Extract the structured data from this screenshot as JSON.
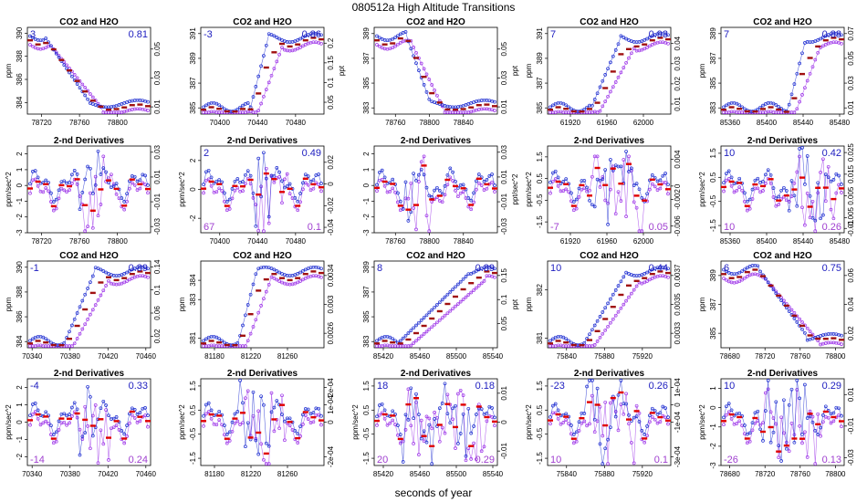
{
  "figure": {
    "title": "080512a   High Altitude Transitions",
    "xlabel": "seconds of year"
  },
  "colors": {
    "co2": "#1a2ad0",
    "h2o": "#9b30e8",
    "ref": "#a01010",
    "ref_deriv": "#e00000",
    "blue_label": "#2020c0",
    "purple_label": "#a040d0",
    "dark_navy": "#101060"
  },
  "chart_data": [
    {
      "type": "scatter",
      "title": "CO2 and H2O",
      "row": 0,
      "col": 0,
      "x_ticks": [
        78720,
        78760,
        78800
      ],
      "xlim": [
        78705,
        78835
      ],
      "y_ticks": [
        384,
        386,
        388,
        390
      ],
      "ylim": [
        383,
        390.5
      ],
      "y2_ticks": [
        0.01,
        0.03,
        0.05
      ],
      "y2lim": [
        0.005,
        0.065
      ],
      "ylabel": "ppm",
      "y2label": "",
      "left_label": "3",
      "right_label": "0.81",
      "shape": "drop",
      "step": [
        0.12,
        0.5
      ]
    },
    {
      "type": "scatter",
      "title": "CO2 and H2O",
      "row": 0,
      "col": 1,
      "x_ticks": [
        70400,
        70440,
        70480
      ],
      "xlim": [
        70380,
        70510
      ],
      "y_ticks": [
        385,
        387,
        389,
        391
      ],
      "ylim": [
        384.5,
        391.5
      ],
      "y2_ticks": [
        0.05,
        0.1,
        0.15,
        0.2
      ],
      "y2lim": [
        0.02,
        0.24
      ],
      "ylabel": "",
      "y2label": "ppt",
      "left_label": "-3",
      "right_label": "0.86",
      "shape": "rise",
      "step": [
        0.4,
        0.55
      ]
    },
    {
      "type": "scatter",
      "title": "CO2 and H2O",
      "row": 0,
      "col": 2,
      "x_ticks": [
        78760,
        78800,
        78840
      ],
      "xlim": [
        78735,
        78880
      ],
      "y_ticks": [
        383,
        385,
        387,
        389
      ],
      "ylim": [
        382.5,
        389.5
      ],
      "y2_ticks": [
        0.01,
        0.03,
        0.05
      ],
      "y2lim": [
        0.005,
        0.065
      ],
      "ylabel": "",
      "y2label": "ppt",
      "left_label": "",
      "right_label": "",
      "shape": "drop",
      "step": [
        0.25,
        0.45
      ]
    },
    {
      "type": "scatter",
      "title": "CO2 and H2O",
      "row": 0,
      "col": 3,
      "x_ticks": [
        61920,
        61960,
        62000
      ],
      "xlim": [
        61895,
        62030
      ],
      "y_ticks": [
        385,
        387,
        389,
        391
      ],
      "ylim": [
        384.5,
        391.5
      ],
      "y2_ticks": [
        0.01,
        0.02,
        0.03,
        0.04
      ],
      "y2lim": [
        0.005,
        0.048
      ],
      "ylabel": "ppm",
      "y2label": "",
      "left_label": "7",
      "right_label": "0.93",
      "shape": "rise",
      "step": [
        0.35,
        0.6
      ]
    },
    {
      "type": "scatter",
      "title": "CO2 and H2O",
      "row": 0,
      "col": 4,
      "x_ticks": [
        85360,
        85400,
        85440,
        85480
      ],
      "xlim": [
        85350,
        85485
      ],
      "y_ticks": [
        383,
        385,
        387,
        389
      ],
      "ylim": [
        382.5,
        389.5
      ],
      "y2_ticks": [
        0.01,
        0.03,
        0.05,
        0.07
      ],
      "y2lim": [
        0.005,
        0.075
      ],
      "ylabel": "ppm",
      "y2label": "",
      "left_label": "7",
      "right_label": "0.88",
      "shape": "rise",
      "step": [
        0.55,
        0.7
      ]
    },
    {
      "type": "scatter",
      "title": "2-nd Derivatives",
      "row": 1,
      "col": 0,
      "x_ticks": [
        78720,
        78760,
        78800
      ],
      "xlim": [
        78705,
        78835
      ],
      "y_ticks": [
        -3,
        -2,
        -1,
        0,
        1,
        2
      ],
      "ylim": [
        -3,
        2.5
      ],
      "y2_ticks": [
        -0.03,
        -0.01,
        0.01,
        0.03
      ],
      "y2lim": [
        -0.035,
        0.035
      ],
      "ylabel": "ppm/sec^2",
      "y2label": "",
      "left_label": "",
      "right_label": "",
      "bottom_left": "",
      "bottom_right": "",
      "shape": "wiggle",
      "step": [
        0.4,
        0.6
      ]
    },
    {
      "type": "scatter",
      "title": "2-nd Derivatives",
      "row": 1,
      "col": 1,
      "x_ticks": [
        70400,
        70440,
        70480
      ],
      "xlim": [
        70380,
        70510
      ],
      "y_ticks": [
        -2,
        0,
        2
      ],
      "ylim": [
        -3,
        3
      ],
      "y2_ticks": [
        -0.04,
        -0.02,
        0.0,
        0.02
      ],
      "y2lim": [
        -0.045,
        0.035
      ],
      "ylabel": "ppm/sec^2",
      "y2label": "",
      "left_label": "2",
      "right_label": "0.49",
      "bottom_left": "67",
      "bottom_right": "0.1",
      "shape": "wiggle",
      "step": [
        0.4,
        0.6
      ]
    },
    {
      "type": "scatter",
      "title": "2-nd Derivatives",
      "row": 1,
      "col": 2,
      "x_ticks": [
        78760,
        78800,
        78840
      ],
      "xlim": [
        78735,
        78880
      ],
      "y_ticks": [
        -3,
        -2,
        -1,
        0,
        1,
        2
      ],
      "ylim": [
        -3,
        2.5
      ],
      "y2_ticks": [
        -0.03,
        -0.01,
        0.01,
        0.03
      ],
      "y2lim": [
        -0.035,
        0.035
      ],
      "ylabel": "",
      "y2label": "ppt/sec^2",
      "left_label": "",
      "right_label": "",
      "bottom_left": "",
      "bottom_right": "",
      "shape": "wiggle",
      "step": [
        0.2,
        0.35
      ]
    },
    {
      "type": "scatter",
      "title": "2-nd Derivatives",
      "row": 1,
      "col": 3,
      "x_ticks": [
        61920,
        61960,
        62000
      ],
      "xlim": [
        61895,
        62030
      ],
      "y_ticks": [
        -1.5,
        -0.5,
        0.5,
        1.5
      ],
      "ylim": [
        -2,
        2
      ],
      "y2_ticks": [
        -0.006,
        -0.002,
        0.0,
        0.004
      ],
      "y2lim": [
        -0.007,
        0.006
      ],
      "ylabel": "ppm/sec^2",
      "y2label": "",
      "left_label": "",
      "right_label": "",
      "bottom_left": "-7",
      "bottom_right": "0.05",
      "shape": "wiggle",
      "step": [
        0.3,
        0.7
      ]
    },
    {
      "type": "scatter",
      "title": "2-nd Derivatives",
      "row": 1,
      "col": 4,
      "x_ticks": [
        85360,
        85400,
        85440,
        85480
      ],
      "xlim": [
        85350,
        85485
      ],
      "y_ticks": [
        -1.5,
        -0.5,
        0.5,
        1.5
      ],
      "ylim": [
        -1.8,
        1.8
      ],
      "y2_ticks": [
        -0.01,
        -0.005,
        0.005,
        0.015,
        0.025
      ],
      "y2lim": [
        -0.012,
        0.028
      ],
      "ylabel": "ppm/sec^2",
      "y2label": "",
      "left_label": "10",
      "right_label": "0.42",
      "bottom_left": "10",
      "bottom_right": "0.26",
      "shape": "wiggle",
      "step": [
        0.55,
        0.85
      ]
    },
    {
      "type": "scatter",
      "title": "CO2 and H2O",
      "row": 2,
      "col": 0,
      "x_ticks": [
        70340,
        70380,
        70420,
        70460
      ],
      "xlim": [
        70335,
        70465
      ],
      "y_ticks": [
        384,
        386,
        388,
        390
      ],
      "ylim": [
        383.5,
        390.5
      ],
      "y2_ticks": [
        0.02,
        0.06,
        0.1,
        0.14
      ],
      "y2lim": [
        0.0,
        0.15
      ],
      "ylabel": "ppm",
      "y2label": "",
      "left_label": "-1",
      "right_label": "0.89",
      "shape": "rise",
      "step": [
        0.3,
        0.55
      ]
    },
    {
      "type": "scatter",
      "title": "CO2 and H2O",
      "row": 2,
      "col": 1,
      "x_ticks": [
        81180,
        81220,
        81260
      ],
      "xlim": [
        81165,
        81300
      ],
      "y_ticks": [
        381,
        383,
        384
      ],
      "ylim": [
        380.5,
        385
      ],
      "y2_ticks": [
        0.0026,
        0.003,
        0.0034
      ],
      "y2lim": [
        0.0024,
        0.0036
      ],
      "ylabel": "ppm",
      "y2label": "",
      "left_label": "",
      "right_label": "",
      "shape": "rise",
      "step": [
        0.3,
        0.45
      ]
    },
    {
      "type": "scatter",
      "title": "CO2 and H2O",
      "row": 2,
      "col": 2,
      "x_ticks": [
        85420,
        85460,
        85500,
        85540
      ],
      "xlim": [
        85410,
        85545
      ],
      "y_ticks": [
        383,
        385,
        387,
        389
      ],
      "ylim": [
        382.5,
        389.5
      ],
      "y2_ticks": [
        0.05,
        0.1,
        0.15
      ],
      "y2lim": [
        0.0,
        0.18
      ],
      "ylabel": "",
      "y2label": "ppt",
      "left_label": "8",
      "right_label": "0.89",
      "shape": "rise",
      "step": [
        0.2,
        0.8
      ]
    },
    {
      "type": "scatter",
      "title": "CO2 and H2O",
      "row": 2,
      "col": 3,
      "x_ticks": [
        75840,
        75880,
        75920
      ],
      "xlim": [
        75820,
        75950
      ],
      "y_ticks": [
        381.0,
        382.0
      ],
      "ylim": [
        380.8,
        382.6
      ],
      "y2_ticks": [
        0.0033,
        0.0035,
        0.0037
      ],
      "y2lim": [
        0.0032,
        0.0038
      ],
      "ylabel": "ppm",
      "y2label": "",
      "left_label": "10",
      "right_label": "0.44",
      "shape": "rise",
      "step": [
        0.3,
        0.65
      ]
    },
    {
      "type": "scatter",
      "title": "CO2 and H2O",
      "row": 2,
      "col": 4,
      "x_ticks": [
        78680,
        78720,
        78760,
        78800
      ],
      "xlim": [
        78670,
        78810
      ],
      "y_ticks": [
        385,
        387,
        389
      ],
      "ylim": [
        384,
        390
      ],
      "y2_ticks": [
        0.02,
        0.04,
        0.06
      ],
      "y2lim": [
        0.01,
        0.07
      ],
      "ylabel": "ppm",
      "y2label": "",
      "left_label": "6",
      "right_label": "0.75",
      "shape": "drop",
      "step": [
        0.3,
        0.7
      ]
    },
    {
      "type": "scatter",
      "title": "2-nd Derivatives",
      "row": 3,
      "col": 0,
      "x_ticks": [
        70340,
        70380,
        70420,
        70460
      ],
      "xlim": [
        70335,
        70465
      ],
      "y_ticks": [
        -2,
        -1,
        0,
        1,
        2
      ],
      "ylim": [
        -2.5,
        2.5
      ],
      "y2_ticks": [],
      "y2lim": [
        -1,
        1
      ],
      "ylabel": "ppm/sec^2",
      "y2label": "",
      "left_label": "-4",
      "right_label": "0.33",
      "bottom_left": "-14",
      "bottom_right": "0.24",
      "shape": "wiggle",
      "step": [
        0.4,
        0.55
      ]
    },
    {
      "type": "scatter",
      "title": "2-nd Derivatives",
      "row": 3,
      "col": 1,
      "x_ticks": [
        81180,
        81220,
        81260
      ],
      "xlim": [
        81165,
        81300
      ],
      "y_ticks": [
        -1.5,
        -0.5,
        0.5,
        1.5
      ],
      "ylim": [
        -1.8,
        1.8
      ],
      "y2_ticks": [
        -0.0002,
        0.0,
        0.0001,
        0.0002
      ],
      "y2lim": [
        -0.00025,
        0.00025
      ],
      "ylabel": "ppm/sec^2",
      "y2label": "",
      "left_label": "",
      "right_label": "",
      "bottom_left": "",
      "bottom_right": "",
      "shape": "wiggle",
      "step": [
        0.3,
        0.6
      ]
    },
    {
      "type": "scatter",
      "title": "2-nd Derivatives",
      "row": 3,
      "col": 2,
      "x_ticks": [
        85420,
        85460,
        85500,
        85540
      ],
      "xlim": [
        85410,
        85545
      ],
      "y_ticks": [
        -1.5,
        -0.5,
        0.5,
        1.5
      ],
      "ylim": [
        -1.8,
        1.8
      ],
      "y2_ticks": [
        -0.01,
        0.0,
        0.01
      ],
      "y2lim": [
        -0.015,
        0.015
      ],
      "ylabel": "ppm/sec^2",
      "y2label": "",
      "left_label": "18",
      "right_label": "0.18",
      "bottom_left": "20",
      "bottom_right": "0.29",
      "shape": "wiggle",
      "step": [
        0.2,
        0.8
      ]
    },
    {
      "type": "scatter",
      "title": "2-nd Derivatives",
      "row": 3,
      "col": 3,
      "x_ticks": [
        75840,
        75880,
        75920
      ],
      "xlim": [
        75820,
        75950
      ],
      "y_ticks": [
        -1.5,
        -0.5,
        0.5,
        1.5
      ],
      "ylim": [
        -1.8,
        1.8
      ],
      "y2_ticks": [
        -0.0003,
        -0.0001,
        0.0,
        0.0001
      ],
      "y2lim": [
        -0.00035,
        0.00015
      ],
      "ylabel": "ppm/sec^2",
      "y2label": "",
      "left_label": "-23",
      "right_label": "0.26",
      "bottom_left": "10",
      "bottom_right": "0.1",
      "shape": "wiggle",
      "step": [
        0.3,
        0.65
      ]
    },
    {
      "type": "scatter",
      "title": "2-nd Derivatives",
      "row": 3,
      "col": 4,
      "x_ticks": [
        78680,
        78720,
        78760,
        78800
      ],
      "xlim": [
        78670,
        78810
      ],
      "y_ticks": [
        -3,
        -2,
        -1,
        0,
        1
      ],
      "ylim": [
        -3,
        1.5
      ],
      "y2_ticks": [
        -0.03,
        -0.01,
        0.01
      ],
      "y2lim": [
        -0.035,
        0.02
      ],
      "ylabel": "ppm/sec^2",
      "y2label": "",
      "left_label": "10",
      "right_label": "0.29",
      "bottom_left": "-26",
      "bottom_right": "0.13",
      "shape": "wiggle",
      "step": [
        0.3,
        0.7
      ]
    }
  ]
}
